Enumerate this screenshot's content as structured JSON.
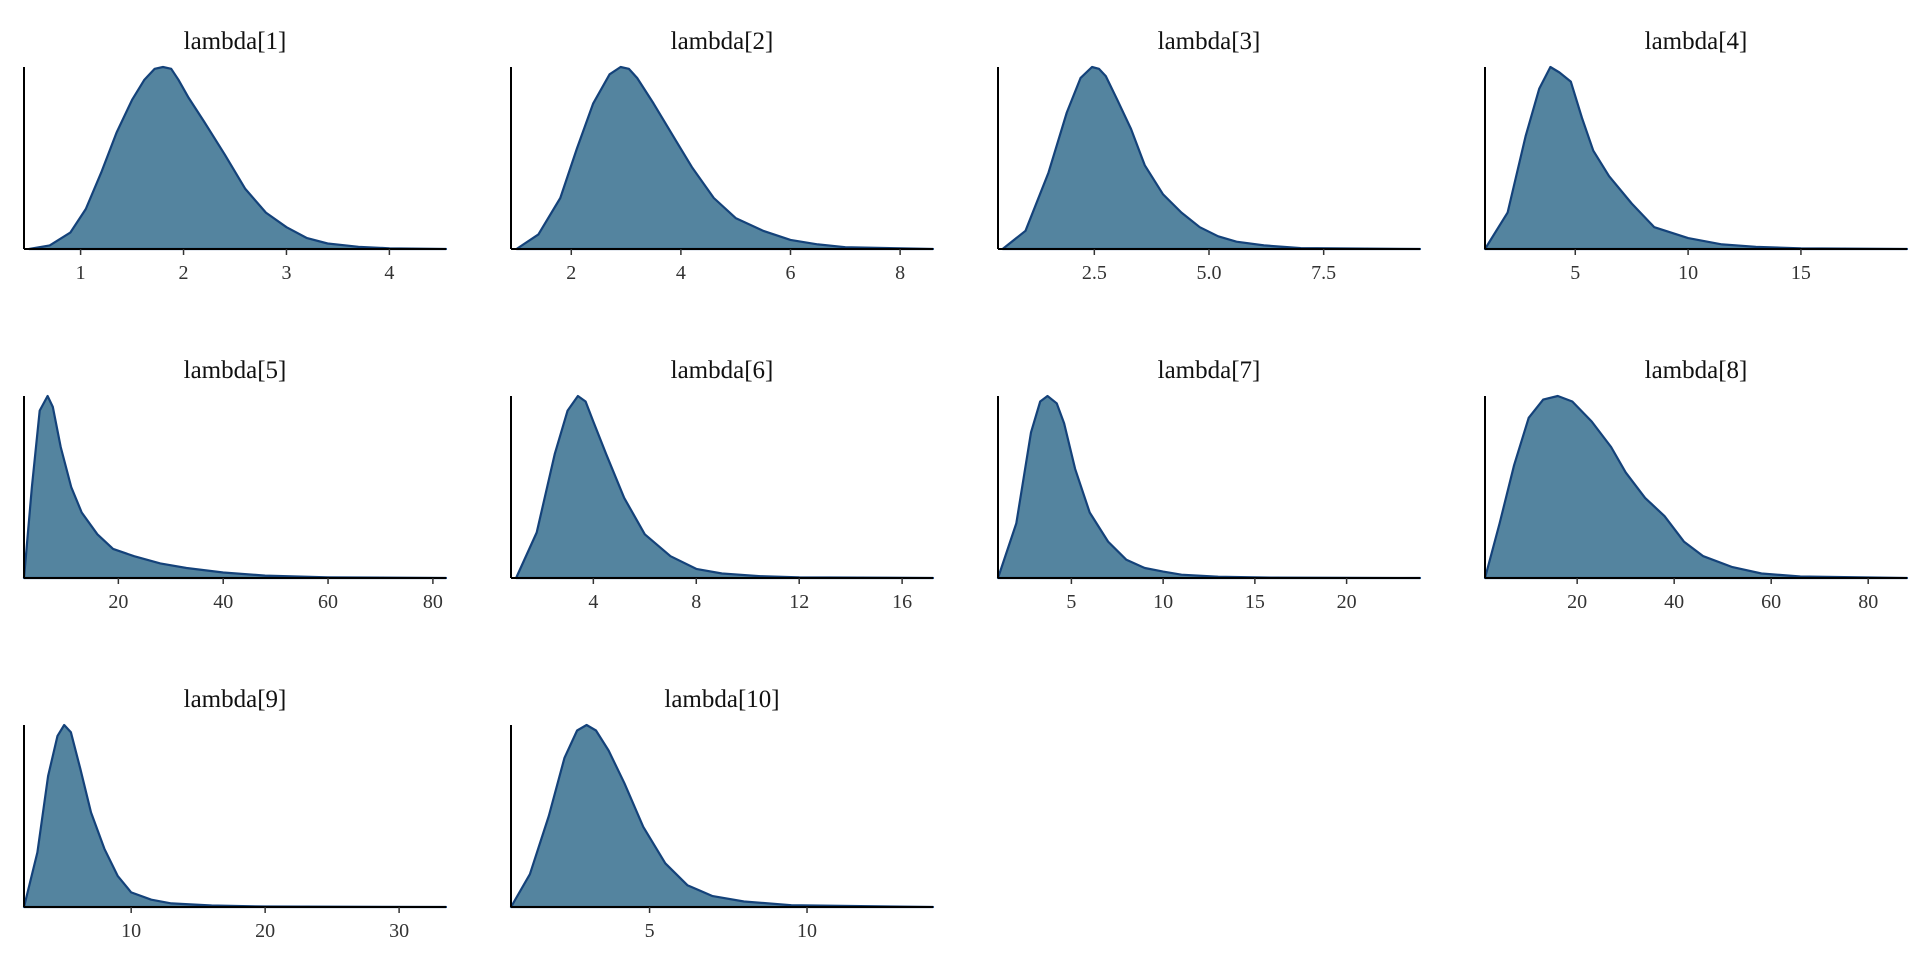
{
  "chart_data": [
    {
      "type": "area",
      "title": "lambda[1]",
      "xlim": [
        0.45,
        4.55
      ],
      "ticks": [
        1,
        2,
        3,
        4
      ],
      "tick_labels": [
        "1",
        "2",
        "3",
        "4"
      ],
      "density": {
        "x": [
          0.5,
          0.7,
          0.9,
          1.05,
          1.2,
          1.35,
          1.5,
          1.62,
          1.72,
          1.8,
          1.88,
          1.95,
          2.05,
          2.2,
          2.4,
          2.6,
          2.8,
          3.0,
          3.2,
          3.4,
          3.7,
          4.0,
          4.55
        ],
        "y": [
          0.0,
          0.02,
          0.09,
          0.22,
          0.42,
          0.64,
          0.82,
          0.93,
          0.99,
          1.0,
          0.99,
          0.93,
          0.83,
          0.7,
          0.52,
          0.33,
          0.2,
          0.12,
          0.06,
          0.03,
          0.012,
          0.004,
          0.0
        ]
      }
    },
    {
      "type": "area",
      "title": "lambda[2]",
      "xlim": [
        0.9,
        8.6
      ],
      "ticks": [
        2,
        4,
        6,
        8
      ],
      "tick_labels": [
        "2",
        "4",
        "6",
        "8"
      ],
      "density": {
        "x": [
          1.0,
          1.4,
          1.8,
          2.1,
          2.4,
          2.7,
          2.9,
          3.05,
          3.2,
          3.5,
          3.9,
          4.2,
          4.6,
          5.0,
          5.5,
          6.0,
          6.5,
          7.0,
          8.6
        ],
        "y": [
          0.0,
          0.08,
          0.28,
          0.55,
          0.8,
          0.96,
          1.0,
          0.99,
          0.94,
          0.8,
          0.6,
          0.45,
          0.28,
          0.17,
          0.1,
          0.05,
          0.025,
          0.01,
          0.0
        ]
      }
    },
    {
      "type": "area",
      "title": "lambda[3]",
      "xlim": [
        0.4,
        9.6
      ],
      "ticks": [
        2.5,
        5.0,
        7.5
      ],
      "tick_labels": [
        "2.5",
        "5.0",
        "7.5"
      ],
      "density": {
        "x": [
          0.5,
          1.0,
          1.5,
          1.9,
          2.2,
          2.45,
          2.6,
          2.75,
          3.0,
          3.3,
          3.6,
          4.0,
          4.4,
          4.8,
          5.2,
          5.6,
          6.2,
          7.0,
          9.6
        ],
        "y": [
          0.0,
          0.1,
          0.42,
          0.75,
          0.94,
          1.0,
          0.99,
          0.95,
          0.82,
          0.66,
          0.46,
          0.3,
          0.2,
          0.12,
          0.07,
          0.04,
          0.02,
          0.005,
          0.0
        ]
      }
    },
    {
      "type": "area",
      "title": "lambda[4]",
      "xlim": [
        1.0,
        19.7
      ],
      "ticks": [
        5,
        10,
        15
      ],
      "tick_labels": [
        "5",
        "10",
        "15"
      ],
      "density": {
        "x": [
          1.0,
          2.0,
          2.8,
          3.4,
          3.9,
          4.3,
          4.8,
          5.3,
          5.8,
          6.5,
          7.5,
          8.5,
          10.0,
          11.5,
          13.0,
          15.0,
          19.7
        ],
        "y": [
          0.0,
          0.2,
          0.62,
          0.88,
          1.0,
          0.97,
          0.92,
          0.72,
          0.54,
          0.4,
          0.25,
          0.12,
          0.06,
          0.025,
          0.012,
          0.004,
          0.0
        ]
      }
    },
    {
      "type": "area",
      "title": "lambda[5]",
      "xlim": [
        2.0,
        82.5
      ],
      "ticks": [
        20,
        40,
        60,
        80
      ],
      "tick_labels": [
        "20",
        "40",
        "60",
        "80"
      ],
      "density": {
        "x": [
          2.0,
          3.5,
          5.0,
          6.5,
          7.5,
          9.0,
          11.0,
          13.0,
          16.0,
          19.0,
          23.0,
          28.0,
          33.0,
          40.0,
          48.0,
          60.0,
          82.5
        ],
        "y": [
          0.0,
          0.5,
          0.92,
          1.0,
          0.94,
          0.72,
          0.5,
          0.36,
          0.24,
          0.16,
          0.12,
          0.08,
          0.055,
          0.03,
          0.013,
          0.004,
          0.0
        ]
      }
    },
    {
      "type": "area",
      "title": "lambda[6]",
      "xlim": [
        0.8,
        17.2
      ],
      "ticks": [
        4,
        8,
        12,
        16
      ],
      "tick_labels": [
        "4",
        "8",
        "12",
        "16"
      ],
      "density": {
        "x": [
          1.0,
          1.8,
          2.5,
          3.0,
          3.4,
          3.7,
          4.0,
          4.5,
          5.2,
          6.0,
          7.0,
          8.0,
          9.0,
          10.5,
          12.0,
          17.2
        ],
        "y": [
          0.0,
          0.25,
          0.68,
          0.92,
          1.0,
          0.97,
          0.86,
          0.68,
          0.44,
          0.24,
          0.12,
          0.05,
          0.025,
          0.01,
          0.004,
          0.0
        ]
      }
    },
    {
      "type": "area",
      "title": "lambda[7]",
      "xlim": [
        1.0,
        24.0
      ],
      "ticks": [
        5,
        10,
        15,
        20
      ],
      "tick_labels": [
        "5",
        "10",
        "15",
        "20"
      ],
      "density": {
        "x": [
          1.0,
          2.0,
          2.8,
          3.3,
          3.7,
          4.2,
          4.6,
          5.2,
          6.0,
          7.0,
          8.0,
          9.0,
          10.0,
          11.0,
          13.0,
          16.0,
          24.0
        ],
        "y": [
          0.0,
          0.3,
          0.8,
          0.97,
          1.0,
          0.96,
          0.85,
          0.6,
          0.36,
          0.2,
          0.1,
          0.055,
          0.035,
          0.018,
          0.007,
          0.002,
          0.0
        ]
      }
    },
    {
      "type": "area",
      "title": "lambda[8]",
      "xlim": [
        1.0,
        88.0
      ],
      "ticks": [
        20,
        40,
        60,
        80
      ],
      "tick_labels": [
        "20",
        "40",
        "60",
        "80"
      ],
      "density": {
        "x": [
          1.0,
          4.0,
          7.0,
          10.0,
          13.0,
          16.0,
          19.0,
          23.0,
          27.0,
          30.0,
          34.0,
          38.0,
          42.0,
          46.0,
          52.0,
          58.0,
          66.0,
          88.0
        ],
        "y": [
          0.0,
          0.3,
          0.62,
          0.88,
          0.98,
          1.0,
          0.97,
          0.86,
          0.72,
          0.58,
          0.44,
          0.34,
          0.2,
          0.12,
          0.06,
          0.025,
          0.008,
          0.0
        ]
      }
    },
    {
      "type": "area",
      "title": "lambda[9]",
      "xlim": [
        2.0,
        33.5
      ],
      "ticks": [
        10,
        20,
        30
      ],
      "tick_labels": [
        "10",
        "20",
        "30"
      ],
      "density": {
        "x": [
          2.0,
          3.0,
          3.8,
          4.5,
          5.0,
          5.5,
          6.2,
          7.0,
          8.0,
          9.0,
          10.0,
          11.5,
          13.0,
          16.0,
          20.0,
          33.5
        ],
        "y": [
          0.0,
          0.3,
          0.72,
          0.94,
          1.0,
          0.96,
          0.76,
          0.52,
          0.32,
          0.17,
          0.08,
          0.04,
          0.02,
          0.008,
          0.003,
          0.0
        ]
      }
    },
    {
      "type": "area",
      "title": "lambda[10]",
      "xlim": [
        0.6,
        14.0
      ],
      "ticks": [
        5,
        10
      ],
      "tick_labels": [
        "5",
        "10"
      ],
      "density": {
        "x": [
          0.6,
          1.2,
          1.8,
          2.3,
          2.7,
          3.0,
          3.3,
          3.7,
          4.2,
          4.8,
          5.5,
          6.2,
          7.0,
          8.0,
          9.5,
          14.0
        ],
        "y": [
          0.0,
          0.18,
          0.5,
          0.82,
          0.97,
          1.0,
          0.97,
          0.86,
          0.68,
          0.44,
          0.24,
          0.12,
          0.06,
          0.03,
          0.01,
          0.0
        ]
      }
    }
  ],
  "colors": {
    "fill": "#54849f",
    "line": "#14427a",
    "axis": "#000000",
    "text": "#111111",
    "tick_text": "#333333"
  }
}
